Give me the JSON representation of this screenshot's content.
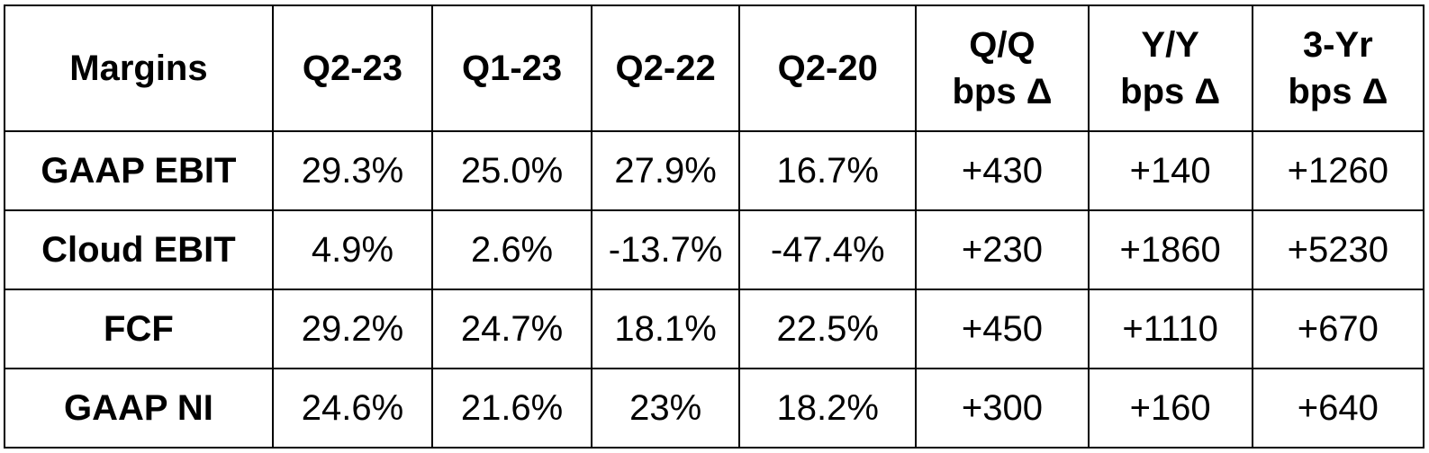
{
  "table": {
    "headers": [
      "Margins",
      "Q2-23",
      "Q1-23",
      "Q2-22",
      "Q2-20",
      "Q/Q\nbps Δ",
      "Y/Y\nbps Δ",
      "3-Yr\nbps Δ"
    ],
    "rows": [
      {
        "label": "GAAP EBIT",
        "values": [
          "29.3%",
          "25.0%",
          "27.9%",
          "16.7%",
          "+430",
          "+140",
          "+1260"
        ]
      },
      {
        "label": "Cloud EBIT",
        "values": [
          "4.9%",
          "2.6%",
          "-13.7%",
          "-47.4%",
          "+230",
          "+1860",
          "+5230"
        ]
      },
      {
        "label": "FCF",
        "values": [
          "29.2%",
          "24.7%",
          "18.1%",
          "22.5%",
          "+450",
          "+1110",
          "+670"
        ]
      },
      {
        "label": "GAAP NI",
        "values": [
          "24.6%",
          "21.6%",
          "23%",
          "18.2%",
          "+300",
          "+160",
          "+640"
        ]
      }
    ]
  }
}
